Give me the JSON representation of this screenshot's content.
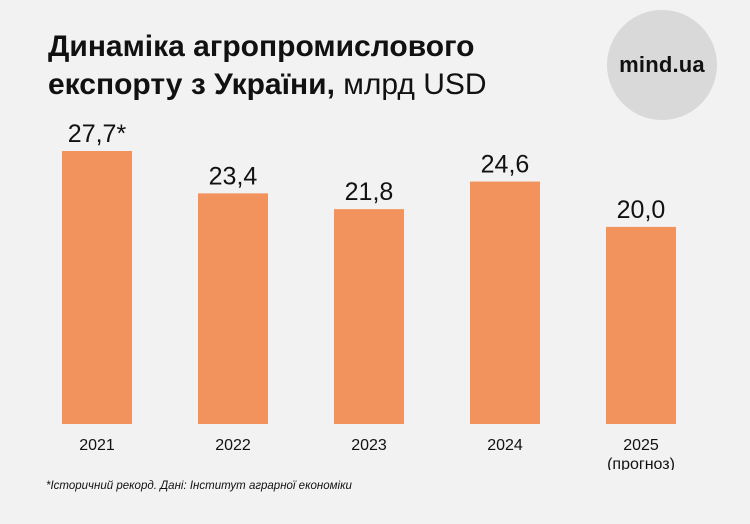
{
  "header": {
    "title_bold": "Динаміка агропромислового експорту з України,",
    "title_unit": " млрд USD"
  },
  "logo": {
    "text": "mind.ua"
  },
  "footnote": "*Історичний рекорд. Дані: Інститут аграрної економіки",
  "colors": {
    "bar": "#f2925c",
    "background": "#f2f2f2",
    "logo_circle": "#d9d9d9"
  },
  "chart_data": {
    "type": "bar",
    "title": "Динаміка агропромислового експорту з України, млрд USD",
    "categories": [
      "2021",
      "2022",
      "2023",
      "2024",
      "2025"
    ],
    "category_sublabels": [
      "",
      "",
      "",
      "",
      "(прогноз)"
    ],
    "values": [
      27.7,
      23.4,
      21.8,
      24.6,
      20.0
    ],
    "value_labels": [
      "27,7*",
      "23,4",
      "21,8",
      "24,6",
      "20,0"
    ],
    "ylim": [
      0,
      30
    ],
    "grid": false,
    "legend": "none"
  }
}
